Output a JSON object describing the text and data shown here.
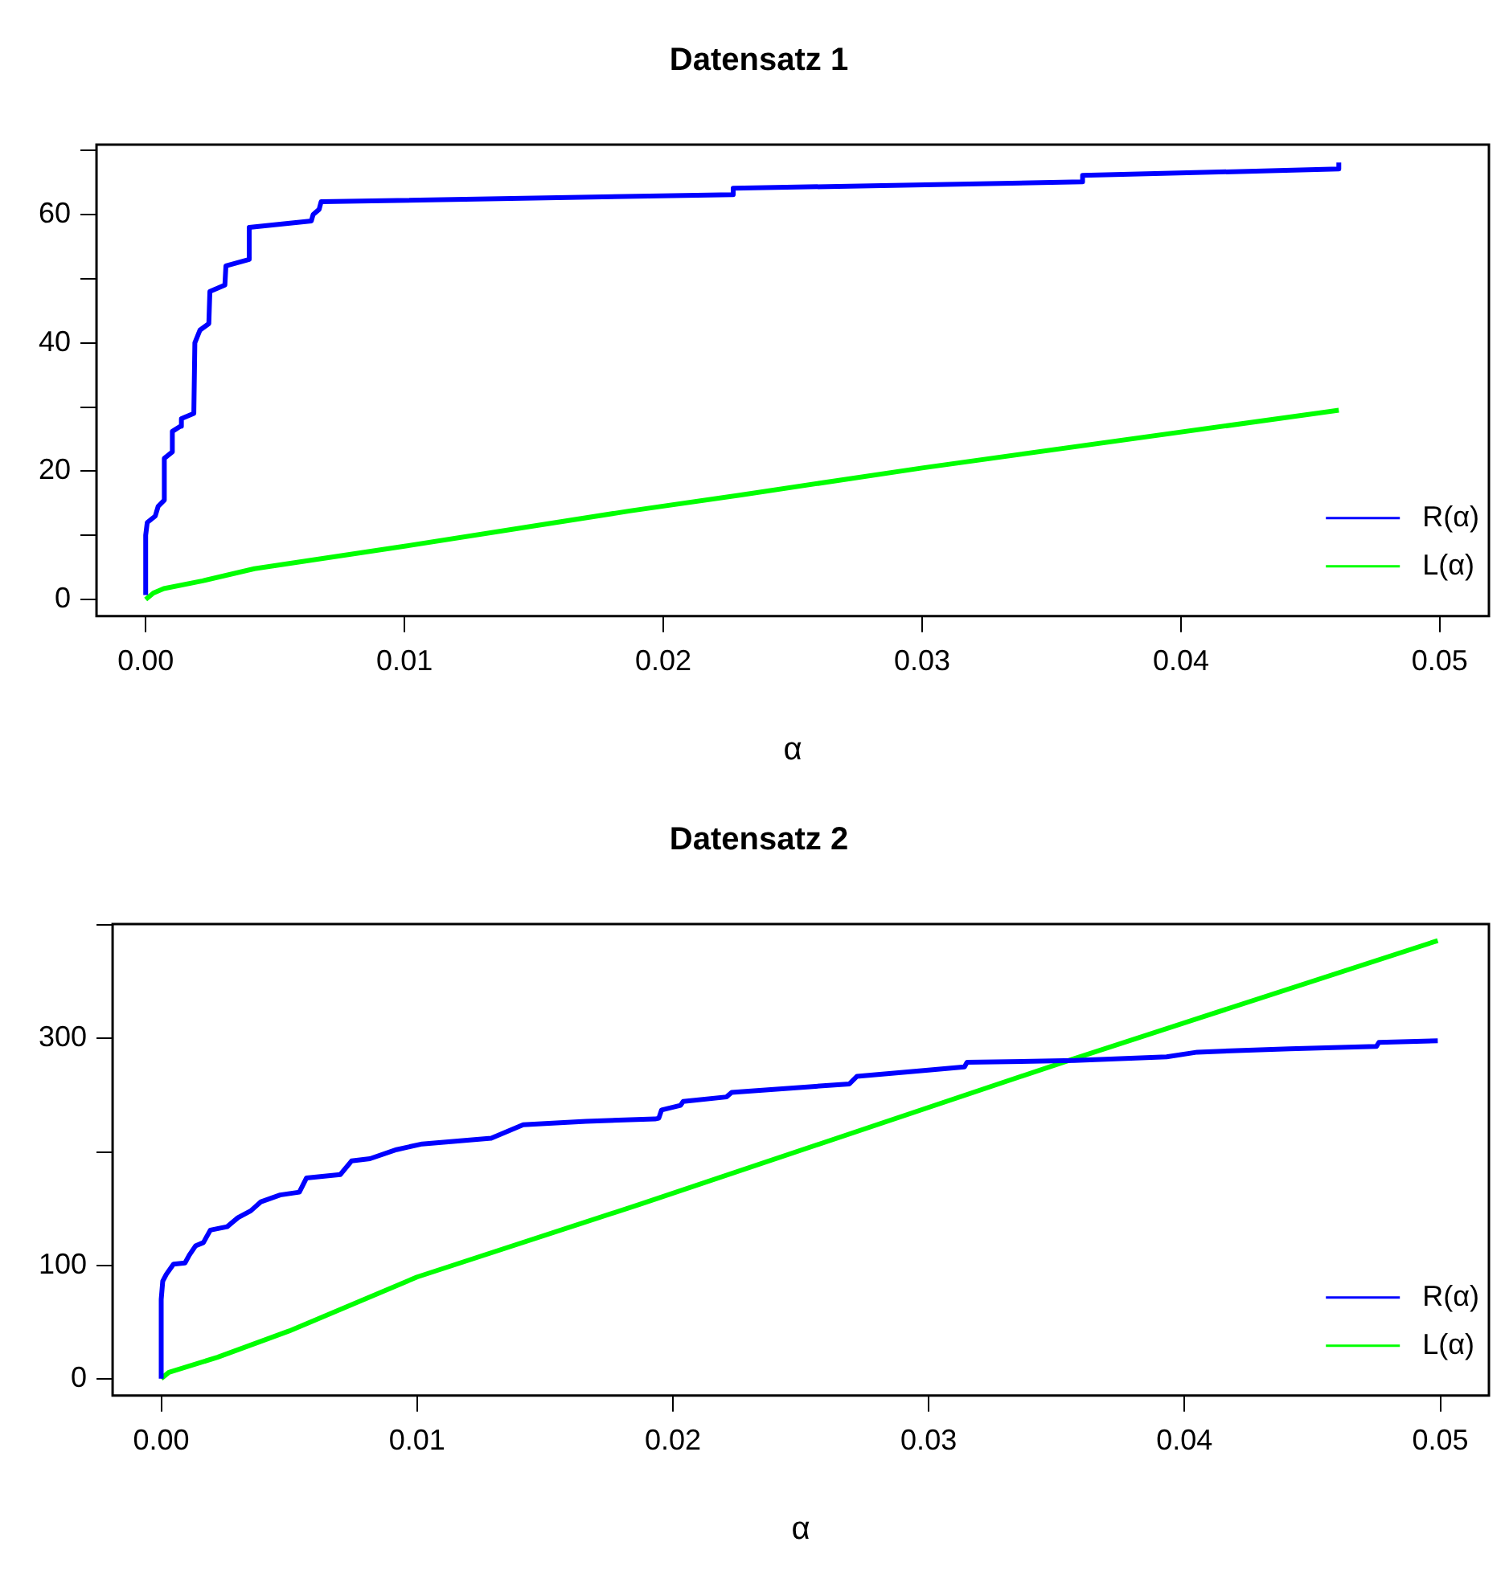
{
  "chart_data": [
    {
      "type": "line",
      "title": "Datensatz 1",
      "xlabel": "α",
      "legend": "bottom right",
      "marker": "none",
      "line_style": "solid",
      "grid": false,
      "xlim": [
        -0.0019,
        0.0519
      ],
      "xticks": [
        {
          "value": 0,
          "label": "0.00"
        },
        0.01,
        0.02,
        0.03,
        0.04,
        0.05
      ],
      "ylim": [
        -2.6,
        70.9
      ],
      "yticks": [
        0,
        {
          "value": 10,
          "label": null
        },
        20,
        {
          "value": 30,
          "label": null
        },
        40,
        {
          "value": 50,
          "label": null
        },
        60,
        {
          "value": 70,
          "label": null
        }
      ],
      "series": [
        {
          "name": "R(α)",
          "color": "#0000ff",
          "x": [
            0,
            0,
            6e-05,
            0.00037,
            0.00048,
            0.00072,
            0.00072,
            0.00103,
            0.00103,
            0.00134,
            0.00138,
            0.00186,
            0.0019,
            0.0021,
            0.00244,
            0.00248,
            0.00306,
            0.0031,
            0.004,
            0.004,
            0.0064,
            0.00647,
            0.0067,
            0.00678,
            0.0227,
            0.0227,
            0.0362,
            0.0362,
            0.0461,
            0.0461
          ],
          "values": [
            0.7,
            10,
            12,
            13,
            14.5,
            15.5,
            22,
            23,
            26.2,
            27,
            28.2,
            29,
            40,
            42,
            43,
            48,
            49,
            52,
            53,
            58,
            59,
            60,
            60.8,
            62,
            63.1,
            64.1,
            65.1,
            66.1,
            67.1,
            68.1
          ]
        },
        {
          "name": "L(α)",
          "color": "#00ff00",
          "x": [
            0,
            0.0003,
            0.0007,
            0.0022,
            0.0042,
            0.01,
            0.0187,
            0.023,
            0.03,
            0.0461
          ],
          "values": [
            0,
            1.0,
            1.7,
            2.9,
            4.8,
            8.3,
            13.8,
            16.3,
            20.5,
            29.5
          ]
        }
      ]
    },
    {
      "type": "line",
      "title": "Datensatz 2",
      "xlabel": "α",
      "legend": "bottom right",
      "marker": "none",
      "line_style": "solid",
      "grid": false,
      "xlim": [
        -0.0019,
        0.0519
      ],
      "xticks": [
        {
          "value": 0,
          "label": "0.00"
        },
        0.01,
        0.02,
        0.03,
        0.04,
        0.05
      ],
      "ylim": [
        -15,
        401
      ],
      "yticks": [
        0,
        100,
        {
          "value": 200,
          "label": null
        },
        300,
        {
          "value": 400,
          "label": null
        }
      ],
      "series": [
        {
          "name": "R(α)",
          "color": "#0000ff",
          "x": [
            0,
            0,
            6e-05,
            0.0002,
            0.00048,
            0.00093,
            0.0011,
            0.00134,
            0.00165,
            0.00192,
            0.00258,
            0.003,
            0.0035,
            0.0039,
            0.00465,
            0.0054,
            0.00568,
            0.007,
            0.00744,
            0.00816,
            0.0092,
            0.0102,
            0.0129,
            0.01415,
            0.0166,
            0.0193,
            0.01945,
            0.01956,
            0.0203,
            0.0204,
            0.0221,
            0.0223,
            0.0269,
            0.0272,
            0.0299,
            0.0314,
            0.0315,
            0.0357,
            0.0393,
            0.0405,
            0.0441,
            0.0475,
            0.0476,
            0.0499
          ],
          "values": [
            0,
            70,
            86,
            92,
            101,
            102,
            109,
            117,
            120,
            131,
            134,
            142,
            148,
            156,
            162,
            164.5,
            177,
            180,
            192,
            194,
            202,
            207,
            212,
            224,
            227,
            229,
            229.7,
            237,
            241,
            244.5,
            248.5,
            252.5,
            260,
            266.7,
            272,
            275,
            279,
            280.6,
            283.8,
            288,
            291,
            293,
            296.6,
            298
          ]
        },
        {
          "name": "L(α)",
          "color": "#00ff00",
          "x": [
            0,
            0.0003,
            0.0022,
            0.005,
            0.01,
            0.0187,
            0.0357,
            0.0499
          ],
          "values": [
            0,
            5.5,
            18.8,
            42,
            89.6,
            153.7,
            282.4,
            386.4
          ]
        }
      ]
    }
  ]
}
